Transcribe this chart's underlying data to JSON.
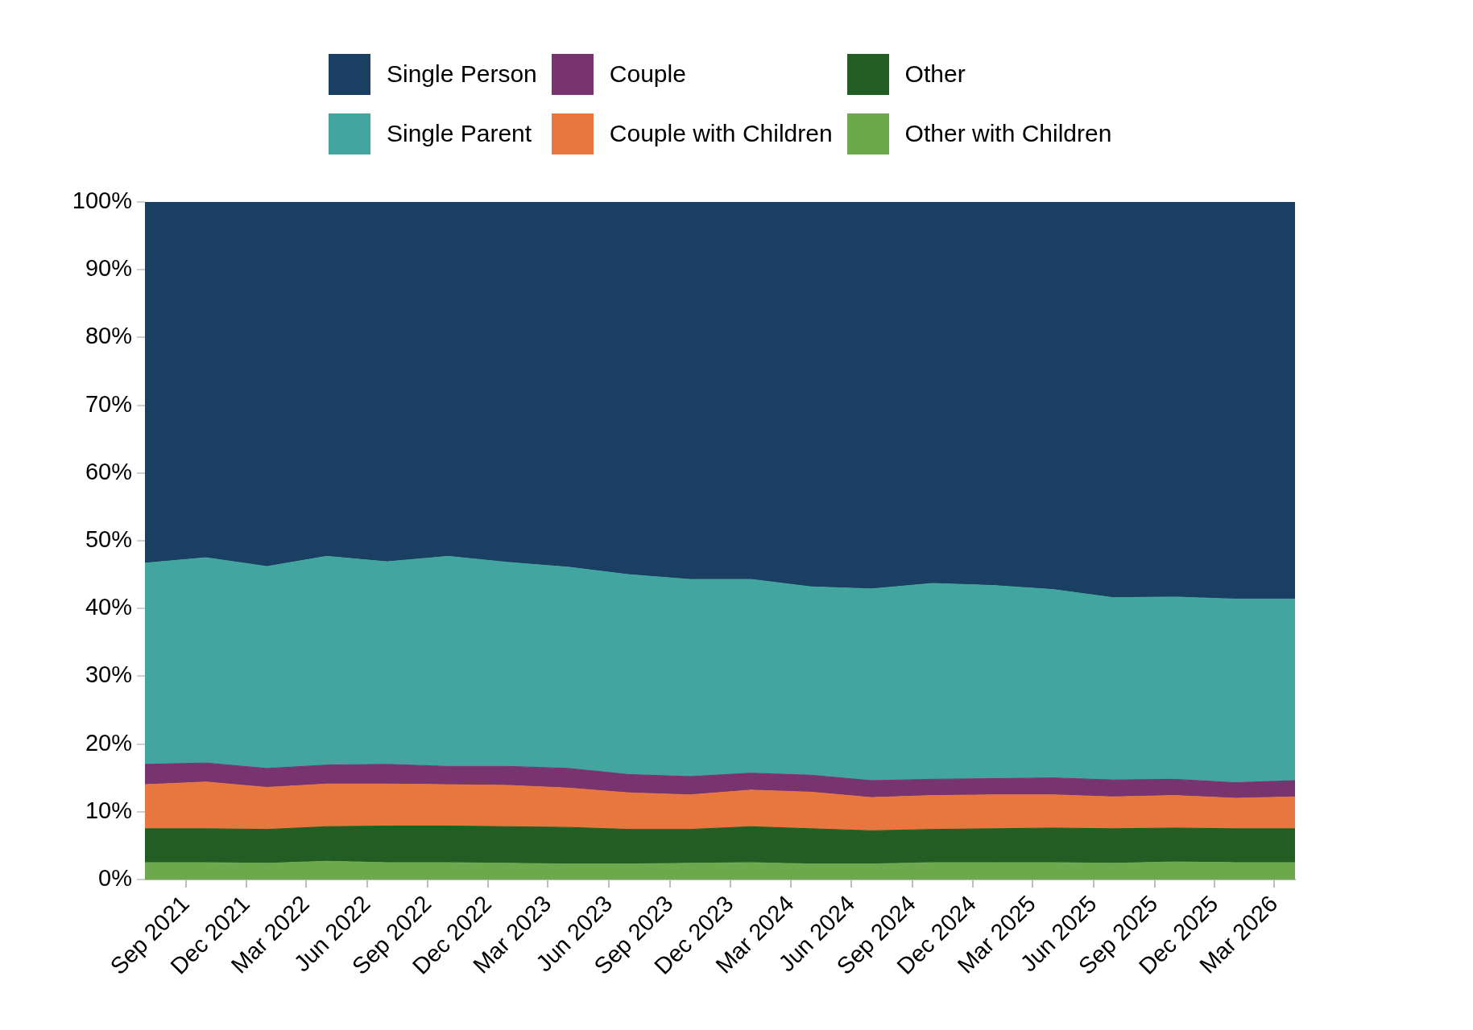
{
  "chart_data": {
    "type": "area",
    "stacked": true,
    "legend": "top",
    "x": [
      "2021-07",
      "2021-10",
      "2022-01",
      "2022-04",
      "2022-07",
      "2022-10",
      "2023-01",
      "2023-04",
      "2023-07",
      "2023-10",
      "2024-01",
      "2024-04",
      "2024-07",
      "2024-10",
      "2025-01",
      "2025-04",
      "2025-07",
      "2025-10",
      "2026-01",
      "2026-04"
    ],
    "xlim": [
      "2021-07",
      "2026-04"
    ],
    "xticks": [
      {
        "value": "2021-09",
        "label": "Sep 2021"
      },
      {
        "value": "2021-12",
        "label": "Dec 2021"
      },
      {
        "value": "2022-03",
        "label": "Mar 2022"
      },
      {
        "value": "2022-06",
        "label": "Jun 2022"
      },
      {
        "value": "2022-09",
        "label": "Sep 2022"
      },
      {
        "value": "2022-12",
        "label": "Dec 2022"
      },
      {
        "value": "2023-03",
        "label": "Mar 2023"
      },
      {
        "value": "2023-06",
        "label": "Jun 2023"
      },
      {
        "value": "2023-09",
        "label": "Sep 2023"
      },
      {
        "value": "2023-12",
        "label": "Dec 2023"
      },
      {
        "value": "2024-03",
        "label": "Mar 2024"
      },
      {
        "value": "2024-06",
        "label": "Jun 2024"
      },
      {
        "value": "2024-09",
        "label": "Sep 2024"
      },
      {
        "value": "2024-12",
        "label": "Dec 2024"
      },
      {
        "value": "2025-03",
        "label": "Mar 2025"
      },
      {
        "value": "2025-06",
        "label": "Jun 2025"
      },
      {
        "value": "2025-09",
        "label": "Sep 2025"
      },
      {
        "value": "2025-12",
        "label": "Dec 2025"
      },
      {
        "value": "2026-03",
        "label": "Mar 2026"
      }
    ],
    "ylim": [
      0,
      100
    ],
    "yticks": [
      {
        "value": 0,
        "label": "0%"
      },
      {
        "value": 10,
        "label": "10%"
      },
      {
        "value": 20,
        "label": "20%"
      },
      {
        "value": 30,
        "label": "30%"
      },
      {
        "value": 40,
        "label": "40%"
      },
      {
        "value": 50,
        "label": "50%"
      },
      {
        "value": 60,
        "label": "60%"
      },
      {
        "value": 70,
        "label": "70%"
      },
      {
        "value": 80,
        "label": "80%"
      },
      {
        "value": 90,
        "label": "90%"
      },
      {
        "value": 100,
        "label": "100%"
      }
    ],
    "series": [
      {
        "name": "Other with Children",
        "color": "#6ea84d",
        "values": [
          2.5,
          2.5,
          2.4,
          2.7,
          2.5,
          2.5,
          2.4,
          2.3,
          2.3,
          2.4,
          2.5,
          2.3,
          2.3,
          2.5,
          2.5,
          2.5,
          2.4,
          2.6,
          2.5,
          2.5
        ]
      },
      {
        "name": "Other",
        "color": "#225e23",
        "values": [
          5.0,
          5.0,
          5.0,
          5.1,
          5.4,
          5.4,
          5.4,
          5.4,
          5.1,
          5.0,
          5.3,
          5.2,
          4.9,
          4.9,
          5.0,
          5.1,
          5.1,
          5.0,
          5.0,
          5.0
        ]
      },
      {
        "name": "Couple with Children",
        "color": "#e7763f",
        "values": [
          6.5,
          6.9,
          6.2,
          6.3,
          6.2,
          6.1,
          6.1,
          5.8,
          5.4,
          5.1,
          5.4,
          5.4,
          4.9,
          5.0,
          5.0,
          4.9,
          4.7,
          4.8,
          4.5,
          4.7
        ]
      },
      {
        "name": "Couple",
        "color": "#78346f",
        "values": [
          3.0,
          2.8,
          2.8,
          2.8,
          2.9,
          2.7,
          2.8,
          2.9,
          2.7,
          2.7,
          2.5,
          2.5,
          2.5,
          2.4,
          2.4,
          2.5,
          2.5,
          2.4,
          2.3,
          2.4
        ]
      },
      {
        "name": "Single Parent",
        "color": "#42a59f",
        "values": [
          29.7,
          30.3,
          29.8,
          30.8,
          29.9,
          31.0,
          30.1,
          29.7,
          29.5,
          29.1,
          28.6,
          27.8,
          28.3,
          28.9,
          28.5,
          27.8,
          26.9,
          26.9,
          27.1,
          26.8
        ]
      },
      {
        "name": "Single Person",
        "color": "#1b3f63",
        "values": [
          53.3,
          52.5,
          53.8,
          52.3,
          53.1,
          52.3,
          53.2,
          53.9,
          55.0,
          55.7,
          55.7,
          56.8,
          57.1,
          56.3,
          56.6,
          57.2,
          58.4,
          58.3,
          58.6,
          58.6
        ]
      }
    ]
  }
}
